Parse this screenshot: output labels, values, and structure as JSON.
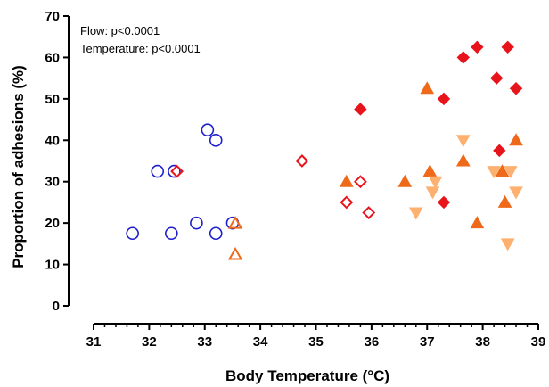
{
  "chart_data": {
    "type": "scatter",
    "xlabel": "Body Temperature (°C)",
    "ylabel": "Proportion of adhesions (%)",
    "xlim": [
      31,
      39
    ],
    "ylim": [
      0,
      70
    ],
    "x_ticks": [
      "31",
      "32",
      "33",
      "34",
      "35",
      "36",
      "37",
      "38",
      "39"
    ],
    "y_ticks": [
      "0",
      "10",
      "20",
      "30",
      "40",
      "50",
      "60",
      "70"
    ],
    "x_minor_step": 0.2,
    "grid": false,
    "legend": "none",
    "annotations": [
      "Flow: p<0.0001",
      "Temperature: p<0.0001"
    ],
    "series": [
      {
        "marker": "circle-open",
        "color": "#1f1fcc",
        "points": [
          [
            31.7,
            17.5
          ],
          [
            32.15,
            32.5
          ],
          [
            32.4,
            17.5
          ],
          [
            32.45,
            32.5
          ],
          [
            32.85,
            20.0
          ],
          [
            33.05,
            42.5
          ],
          [
            33.2,
            40.0
          ],
          [
            33.2,
            17.5
          ],
          [
            33.5,
            20.0
          ]
        ]
      },
      {
        "marker": "diamond-open",
        "color": "#e8141c",
        "points": [
          [
            32.5,
            32.5
          ],
          [
            34.75,
            35.0
          ],
          [
            35.55,
            25.0
          ],
          [
            35.8,
            30.0
          ],
          [
            35.95,
            22.5
          ]
        ]
      },
      {
        "marker": "triangle-up-open",
        "color": "#ee6a1a",
        "points": [
          [
            33.55,
            20.0
          ],
          [
            33.55,
            12.5
          ]
        ]
      },
      {
        "marker": "diamond-filled",
        "color": "#e8141c",
        "points": [
          [
            35.8,
            47.5
          ],
          [
            37.3,
            50.0
          ],
          [
            37.3,
            25.0
          ],
          [
            37.65,
            60.0
          ],
          [
            37.9,
            62.5
          ],
          [
            38.25,
            55.0
          ],
          [
            38.3,
            37.5
          ],
          [
            38.45,
            62.5
          ],
          [
            38.6,
            52.5
          ]
        ]
      },
      {
        "marker": "triangle-up-filled",
        "color": "#ee6a1a",
        "points": [
          [
            35.55,
            30.0
          ],
          [
            36.6,
            30.0
          ],
          [
            37.0,
            52.5
          ],
          [
            37.05,
            32.5
          ],
          [
            37.65,
            35.0
          ],
          [
            37.9,
            20.0
          ],
          [
            38.35,
            32.5
          ],
          [
            38.4,
            25.0
          ],
          [
            38.6,
            40.0
          ]
        ]
      },
      {
        "marker": "triangle-down-filled",
        "color": "#fdb070",
        "points": [
          [
            36.8,
            22.5
          ],
          [
            37.1,
            27.5
          ],
          [
            37.15,
            30.0
          ],
          [
            37.65,
            40.0
          ],
          [
            38.2,
            32.5
          ],
          [
            38.45,
            15.0
          ],
          [
            38.5,
            32.5
          ],
          [
            38.6,
            27.5
          ]
        ]
      }
    ]
  }
}
